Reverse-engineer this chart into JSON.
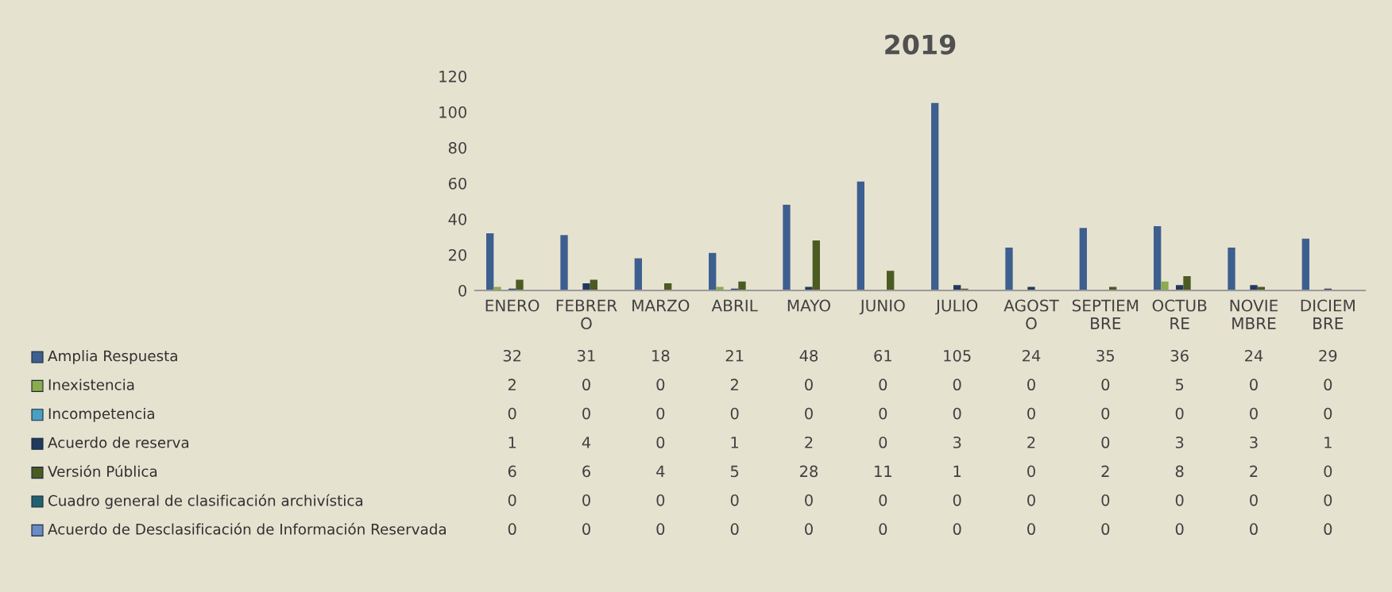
{
  "chart_data": {
    "type": "bar",
    "title": "2019",
    "categories": [
      "ENERO",
      "FEBRER\nO",
      "MARZO",
      "ABRIL",
      "MAYO",
      "JUNIO",
      "JULIO",
      "AGOST\nO",
      "SEPTIEM\nBRE",
      "OCTUB\nRE",
      "NOVIE\nMBRE",
      "DICIEM\nBRE"
    ],
    "series": [
      {
        "name": "Amplia Respuesta",
        "color": "#3d5f8f",
        "values": [
          32,
          31,
          18,
          21,
          48,
          61,
          105,
          24,
          35,
          36,
          24,
          29
        ]
      },
      {
        "name": "Inexistencia",
        "color": "#8cab4c",
        "values": [
          2,
          0,
          0,
          2,
          0,
          0,
          0,
          0,
          0,
          5,
          0,
          0
        ]
      },
      {
        "name": "Incompetencia",
        "color": "#4a9fc2",
        "values": [
          0,
          0,
          0,
          0,
          0,
          0,
          0,
          0,
          0,
          0,
          0,
          0
        ]
      },
      {
        "name": "Acuerdo de reserva",
        "color": "#213a5e",
        "values": [
          1,
          4,
          0,
          1,
          2,
          0,
          3,
          2,
          0,
          3,
          3,
          1
        ]
      },
      {
        "name": "Versión Pública",
        "color": "#4b5b22",
        "values": [
          6,
          6,
          4,
          5,
          28,
          11,
          1,
          0,
          2,
          8,
          2,
          0
        ]
      },
      {
        "name": "Cuadro general de clasificación archivística",
        "color": "#22606f",
        "values": [
          0,
          0,
          0,
          0,
          0,
          0,
          0,
          0,
          0,
          0,
          0,
          0
        ]
      },
      {
        "name": "Acuerdo de Desclasificación de Información Reservada",
        "color": "#6a8cc4",
        "values": [
          0,
          0,
          0,
          0,
          0,
          0,
          0,
          0,
          0,
          0,
          0,
          0
        ]
      }
    ],
    "ylim": [
      0,
      120
    ],
    "yticks": [
      0,
      20,
      40,
      60,
      80,
      100,
      120
    ],
    "grid": false,
    "legend": "bottom left",
    "data_labels": true
  }
}
